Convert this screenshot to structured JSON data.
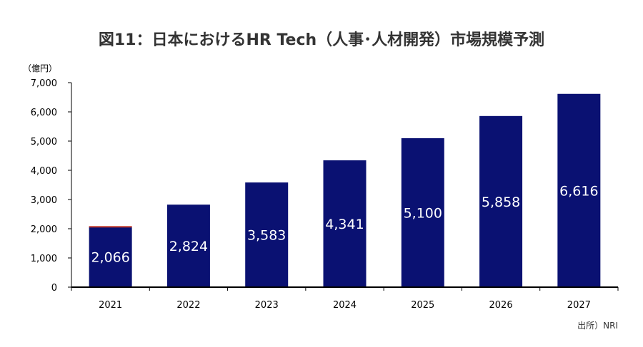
{
  "chart_data": {
    "type": "bar",
    "title": "図11：日本におけるHR Tech（人事･人材開発）市場規模予測",
    "ylabel": "（億円）",
    "xlabel": "",
    "categories": [
      "2021",
      "2022",
      "2023",
      "2024",
      "2025",
      "2026",
      "2027"
    ],
    "values": [
      2066,
      2824,
      3583,
      4341,
      5100,
      5858,
      6616
    ],
    "value_labels": [
      "2,066",
      "2,824",
      "3,583",
      "4,341",
      "5,100",
      "5,858",
      "6,616"
    ],
    "ylim": [
      0,
      7000
    ],
    "yticks": [
      0,
      1000,
      2000,
      3000,
      4000,
      5000,
      6000,
      7000
    ],
    "ytick_labels": [
      "0",
      "1,000",
      "2,000",
      "3,000",
      "4,000",
      "5,000",
      "6,000",
      "7,000"
    ],
    "grid": false,
    "legend": "none",
    "source": "出所）NRI",
    "colors": {
      "bar": "#0a1172",
      "first_bar_top_accent": "#c0392b",
      "axis": "#000000",
      "data_label": "#ffffff"
    }
  }
}
